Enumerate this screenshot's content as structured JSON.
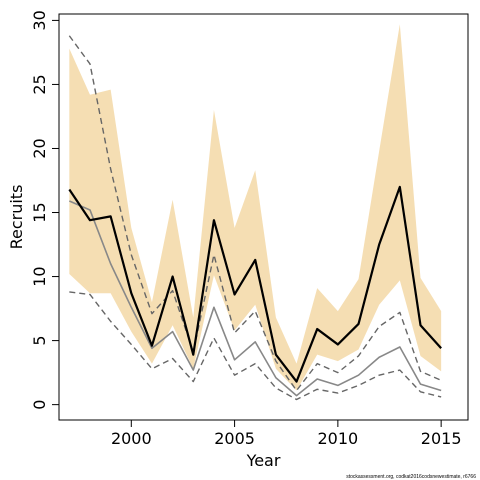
{
  "chart_data": {
    "type": "line",
    "xlabel": "Year",
    "ylabel": "Recruits",
    "xlim": [
      1996.5,
      2016.3
    ],
    "ylim": [
      -1.2,
      30.5
    ],
    "x_ticks": [
      2000,
      2005,
      2010,
      2015
    ],
    "y_ticks": [
      0,
      5,
      10,
      15,
      20,
      25,
      30
    ],
    "grid": false,
    "x": [
      1997,
      1998,
      1999,
      2000,
      2001,
      2002,
      2003,
      2004,
      2005,
      2006,
      2007,
      2008,
      2009,
      2010,
      2011,
      2012,
      2013,
      2014,
      2015
    ],
    "band": {
      "upper": [
        27.8,
        24.2,
        24.6,
        13.8,
        8.0,
        16.0,
        6.8,
        23.0,
        13.8,
        18.3,
        6.8,
        3.2,
        9.1,
        7.3,
        9.8,
        19.8,
        29.7,
        9.9,
        7.3
      ],
      "lower": [
        10.2,
        8.7,
        8.7,
        5.7,
        3.2,
        6.2,
        2.8,
        10.1,
        5.8,
        7.8,
        2.8,
        1.1,
        3.9,
        3.4,
        4.3,
        7.8,
        9.7,
        3.8,
        2.6
      ],
      "color": "#f5deb3"
    },
    "series": [
      {
        "values": [
          16.8,
          14.4,
          14.7,
          8.7,
          4.6,
          10.0,
          3.9,
          14.4,
          8.6,
          11.3,
          3.9,
          1.8,
          5.9,
          4.7,
          6.3,
          12.5,
          17.0,
          6.2,
          4.4
        ],
        "color": "#000000",
        "style": "solid",
        "width": 2.2
      },
      {
        "values": [
          15.9,
          15.2,
          11.0,
          7.6,
          4.4,
          5.7,
          2.7,
          7.6,
          3.5,
          4.9,
          2.1,
          0.7,
          2.0,
          1.5,
          2.3,
          3.7,
          4.5,
          1.6,
          1.1
        ],
        "color": "#888888",
        "style": "solid",
        "width": 1.6
      },
      {
        "values": [
          28.8,
          26.6,
          18.4,
          11.7,
          7.1,
          8.9,
          4.1,
          11.7,
          5.6,
          7.3,
          3.4,
          1.1,
          3.2,
          2.5,
          3.8,
          6.1,
          7.2,
          2.6,
          1.9
        ],
        "color": "#666666",
        "style": "dashed",
        "width": 1.4
      },
      {
        "values": [
          8.8,
          8.6,
          6.5,
          4.7,
          2.8,
          3.6,
          1.8,
          5.2,
          2.3,
          3.2,
          1.3,
          0.4,
          1.2,
          0.9,
          1.5,
          2.3,
          2.7,
          1.0,
          0.6
        ],
        "color": "#666666",
        "style": "dashed",
        "width": 1.4
      }
    ],
    "annotation": "stockassessment.org, codkat2016codsnewestimate, r6766"
  }
}
